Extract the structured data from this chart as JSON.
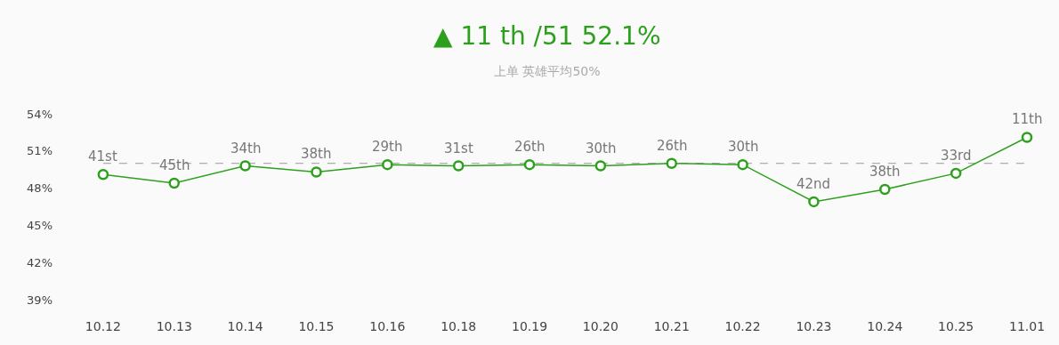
{
  "chart_data": {
    "type": "line",
    "title": "▲ 11 th /51 52.1%",
    "subtitle": "上单 英雄平均50%",
    "categories": [
      "10.12",
      "10.13",
      "10.14",
      "10.15",
      "10.16",
      "10.18",
      "10.19",
      "10.20",
      "10.21",
      "10.22",
      "10.23",
      "10.24",
      "10.25",
      "11.01"
    ],
    "series": [
      {
        "color": "#2ca01c",
        "values": [
          49.1,
          48.4,
          49.8,
          49.3,
          49.9,
          49.8,
          49.9,
          49.8,
          50.0,
          49.9,
          46.9,
          47.9,
          49.2,
          52.1
        ]
      }
    ],
    "annotations": [
      {
        "text": "41st",
        "x": "10.12",
        "y": 49.1
      },
      {
        "text": "45th",
        "x": "10.13",
        "y": 48.4
      },
      {
        "text": "34th",
        "x": "10.14",
        "y": 49.8
      },
      {
        "text": "38th",
        "x": "10.15",
        "y": 49.3
      },
      {
        "text": "29th",
        "x": "10.16",
        "y": 49.9
      },
      {
        "text": "31st",
        "x": "10.18",
        "y": 49.8
      },
      {
        "text": "26th",
        "x": "10.19",
        "y": 49.9
      },
      {
        "text": "30th",
        "x": "10.20",
        "y": 49.8
      },
      {
        "text": "26th",
        "x": "10.21",
        "y": 50.0
      },
      {
        "text": "30th",
        "x": "10.22",
        "y": 49.9
      },
      {
        "text": "42nd",
        "x": "10.23",
        "y": 46.9
      },
      {
        "text": "38th",
        "x": "10.24",
        "y": 47.9
      },
      {
        "text": "33rd",
        "x": "10.25",
        "y": 49.2
      },
      {
        "text": "11th",
        "x": "11.01",
        "y": 52.1
      }
    ],
    "ylim": [
      39,
      54
    ],
    "yticks": [
      {
        "value": 39,
        "label": "39%"
      },
      {
        "value": 42,
        "label": "42%"
      },
      {
        "value": 45,
        "label": "45%"
      },
      {
        "value": 48,
        "label": "48%"
      },
      {
        "value": 51,
        "label": "51%"
      },
      {
        "value": 54,
        "label": "54%"
      }
    ],
    "ref_lines": [
      {
        "axis": "y",
        "value": 50,
        "color": "#999999",
        "line_style": "dashed"
      }
    ],
    "marker": "circle",
    "line_style": "solid",
    "grid": false,
    "legend": false
  }
}
